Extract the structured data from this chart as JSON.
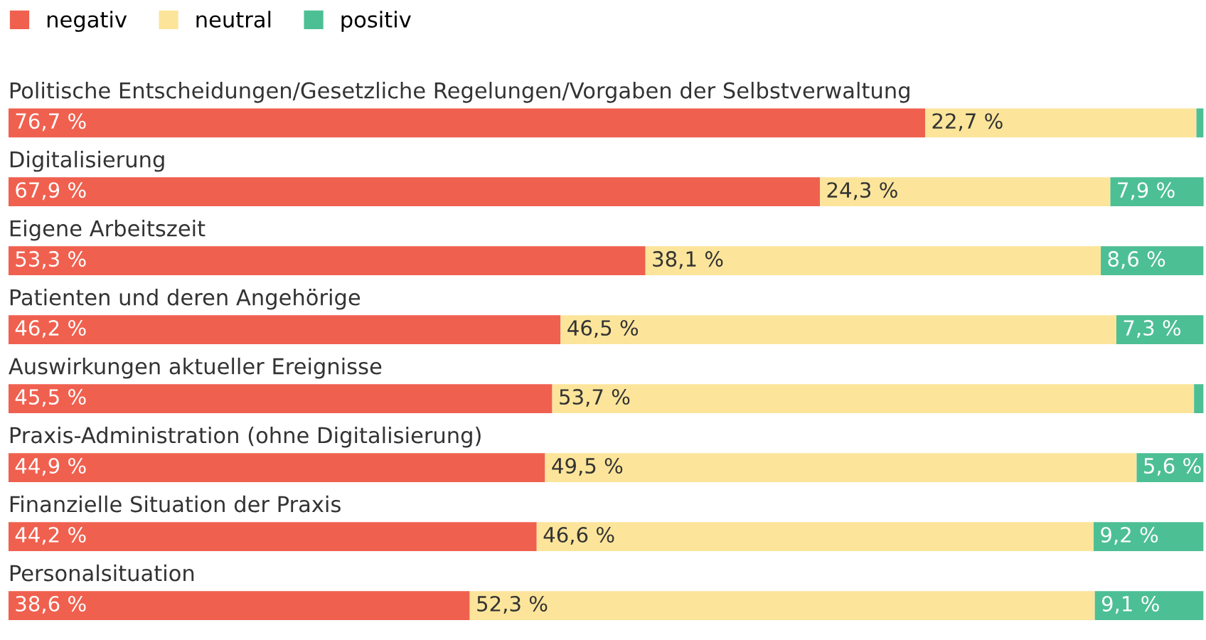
{
  "chart_data": {
    "type": "bar",
    "orientation": "horizontal",
    "stacked": true,
    "legend": "top left",
    "tick_labels": "y",
    "xlim": [
      0,
      100
    ],
    "categories": [
      "Politische Entscheidungen/Gesetzliche Regelungen/Vorgaben der Selbstverwaltung",
      "Digitalisierung",
      "Eigene Arbeitszeit",
      "Patienten und deren Angehörige",
      "Auswirkungen aktueller Ereignisse",
      "Praxis-Administration (ohne Digitalisierung)",
      "Finanzielle Situation der Praxis",
      "Personalsituation"
    ],
    "series": [
      {
        "name": "negativ",
        "color": "#f0604f",
        "values": [
          76.7,
          67.9,
          53.3,
          46.2,
          45.5,
          44.9,
          44.2,
          38.6
        ],
        "value_labels": [
          "76,7 %",
          "67,9 %",
          "53,3 %",
          "46,2 %",
          "45,5 %",
          "44,9 %",
          "44,2 %",
          "38,6 %"
        ]
      },
      {
        "name": "neutral",
        "color": "#fce59a",
        "values": [
          22.7,
          24.3,
          38.1,
          46.5,
          53.7,
          49.5,
          46.6,
          52.3
        ],
        "value_labels": [
          "22,7 %",
          "24,3 %",
          "38,1 %",
          "46,5 %",
          "53,7 %",
          "49,5 %",
          "46,6 %",
          "52,3 %"
        ]
      },
      {
        "name": "positiv",
        "color": "#4dbf94",
        "values": [
          0.6,
          7.9,
          8.6,
          7.3,
          0.8,
          5.6,
          9.2,
          9.1
        ],
        "value_labels": [
          null,
          "7,9 %",
          "8,6 %",
          "7,3 %",
          null,
          "5,6 %",
          "9,2 %",
          "9,1 %"
        ]
      }
    ]
  }
}
